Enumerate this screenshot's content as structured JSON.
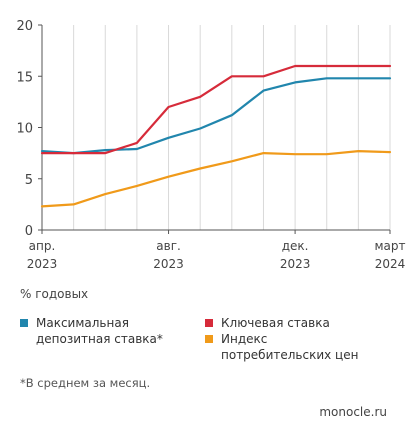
{
  "chart_data": {
    "type": "line",
    "categories": [
      "2023-04",
      "2023-05",
      "2023-06",
      "2023-07",
      "2023-08",
      "2023-09",
      "2023-10",
      "2023-11",
      "2023-12",
      "2024-01",
      "2024-02",
      "2024-03"
    ],
    "x_tick_labels": [
      {
        "at": "2023-04",
        "line1": "апр.",
        "line2": "2023"
      },
      {
        "at": "2023-08",
        "line1": "авг.",
        "line2": "2023"
      },
      {
        "at": "2023-12",
        "line1": "дек.",
        "line2": "2023"
      },
      {
        "at": "2024-03",
        "line1": "март",
        "line2": "2024"
      }
    ],
    "y_ticks": [
      0,
      5,
      10,
      15,
      20
    ],
    "ylim": [
      0,
      20
    ],
    "grid": "vertical",
    "unit_label": "% годовых",
    "series": [
      {
        "name": "Максимальная депозитная ставка*",
        "color": "#2186ad",
        "values": [
          7.7,
          7.5,
          7.8,
          7.9,
          9.0,
          9.9,
          11.2,
          13.6,
          14.4,
          14.8,
          14.8,
          14.8
        ]
      },
      {
        "name": "Ключевая ставка",
        "color": "#d62b3a",
        "values": [
          7.5,
          7.5,
          7.5,
          8.5,
          12.0,
          13.0,
          15.0,
          15.0,
          16.0,
          16.0,
          16.0,
          16.0
        ]
      },
      {
        "name": "Индекс потребительских цен",
        "color": "#f09a1a",
        "values": [
          2.3,
          2.5,
          3.5,
          4.3,
          5.2,
          6.0,
          6.7,
          7.5,
          7.4,
          7.4,
          7.7,
          7.6
        ]
      }
    ]
  },
  "legend": [
    {
      "label": "Максимальная\nдепозитная ставка*",
      "color": "#2186ad"
    },
    {
      "label": "Ключевая ставка",
      "color": "#d62b3a"
    },
    {
      "label": "Индекс\nпотребительских цен",
      "color": "#f09a1a"
    }
  ],
  "footnote": "*В среднем за месяц.",
  "source": "monocle.ru"
}
